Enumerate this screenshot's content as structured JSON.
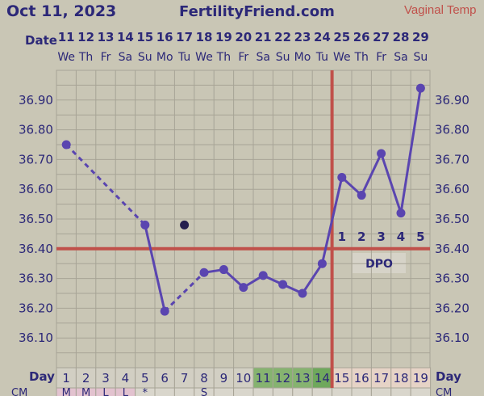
{
  "header": {
    "date": "Oct 11, 2023",
    "site": "FertilityFriend.com",
    "temp_type": "Vaginal Temp"
  },
  "labels": {
    "date_row": "Date",
    "day_row": "Day",
    "cm_row_left": "CM",
    "cm_row_right": "CM",
    "dpo": "DPO"
  },
  "colors": {
    "background": "#c9c6b5",
    "grid": "#a7a496",
    "text": "#2c2878",
    "series": "#5a45b0",
    "coverline": "#c0504a",
    "fertile_day_bg": "#86b370",
    "ovulation_day_bg": "#6fa85c",
    "luteal_day_bg": "#e6d3c6",
    "menses_cm_bg": "#e2c2cf"
  },
  "chart_data": {
    "type": "line",
    "title": "",
    "xlabel": "",
    "ylabel": "",
    "dates": [
      11,
      12,
      13,
      14,
      15,
      16,
      17,
      18,
      19,
      20,
      21,
      22,
      23,
      24,
      25,
      26,
      27,
      28,
      29
    ],
    "weekdays": [
      "We",
      "Th",
      "Fr",
      "Sa",
      "Su",
      "Mo",
      "Tu",
      "We",
      "Th",
      "Fr",
      "Sa",
      "Su",
      "Mo",
      "Tu",
      "We",
      "Th",
      "Fr",
      "Sa",
      "Su"
    ],
    "cycle_days": [
      1,
      2,
      3,
      4,
      5,
      6,
      7,
      8,
      9,
      10,
      11,
      12,
      13,
      14,
      15,
      16,
      17,
      18,
      19
    ],
    "fertile_days": [
      11,
      12,
      13
    ],
    "ovulation_day": 14,
    "luteal_days": [
      15,
      16,
      17,
      18,
      19
    ],
    "yticks": [
      "36.10",
      "36.20",
      "36.30",
      "36.40",
      "36.50",
      "36.60",
      "36.70",
      "36.80",
      "36.90"
    ],
    "ylim": [
      36.0,
      37.0
    ],
    "grid": true,
    "temperatures": [
      36.75,
      null,
      null,
      null,
      36.48,
      36.19,
      null,
      36.32,
      36.33,
      36.27,
      36.31,
      36.28,
      36.25,
      36.35,
      36.64,
      36.58,
      36.72,
      36.52,
      36.94
    ],
    "discarded": [
      {
        "day": 7,
        "temp": 36.48
      }
    ],
    "dashed_segments": [
      [
        1,
        5
      ],
      [
        6,
        8
      ]
    ],
    "coverline": 36.4,
    "ovulation_line_day": 14,
    "dpo_labels": [
      "1",
      "2",
      "3",
      "4",
      "5"
    ],
    "cm_row": [
      "M",
      "M",
      "L",
      "L",
      "*",
      "",
      "",
      "S",
      "",
      "",
      "",
      "",
      "",
      "",
      "",
      "",
      "",
      "",
      ""
    ]
  }
}
